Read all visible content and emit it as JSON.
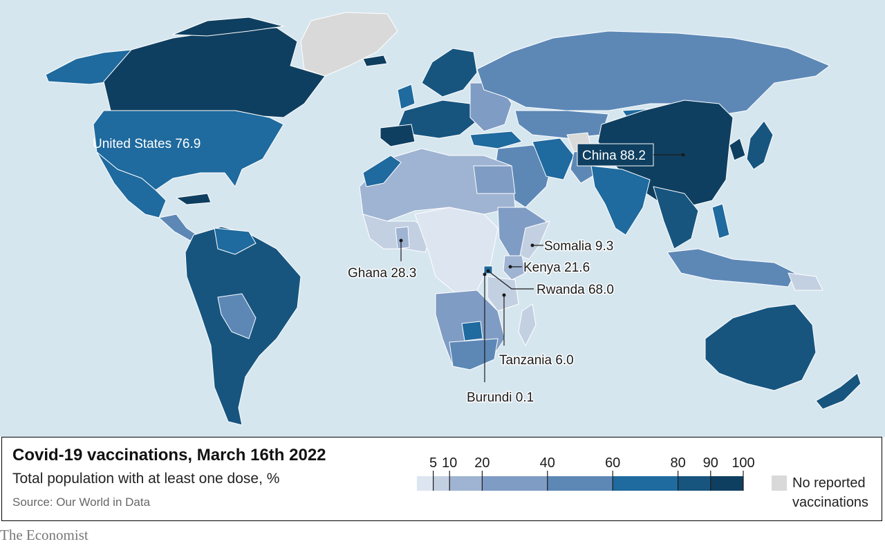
{
  "colors": {
    "ocean": "#d6e6ef",
    "no_data": "#d9d9d9",
    "accent_red": "#e3120b",
    "scale": [
      "#dde5f0",
      "#c3d0e2",
      "#9fb4d2",
      "#7f9cc4",
      "#5d88b6",
      "#1f6a9e",
      "#17557f",
      "#0f3f60"
    ]
  },
  "chart_data": {
    "type": "choropleth",
    "title": "Covid-19 vaccinations, March 16th 2022",
    "subtitle": "Total population with at least one dose, %",
    "source": "Source: Our World in Data",
    "legend": {
      "ticks": [
        "5",
        "10",
        "20",
        "40",
        "60",
        "80",
        "90",
        "100"
      ],
      "bins": [
        0,
        5,
        10,
        20,
        40,
        60,
        80,
        90,
        100
      ],
      "no_data_label": "No reported vaccinations"
    },
    "annotations": [
      {
        "country": "United States",
        "value": "76.9"
      },
      {
        "country": "China",
        "value": "88.2"
      },
      {
        "country": "Somalia",
        "value": "9.3"
      },
      {
        "country": "Kenya",
        "value": "21.6"
      },
      {
        "country": "Rwanda",
        "value": "68.0"
      },
      {
        "country": "Ghana",
        "value": "28.3"
      },
      {
        "country": "Tanzania",
        "value": "6.0"
      },
      {
        "country": "Burundi",
        "value": "0.1"
      }
    ]
  },
  "footer": {
    "brand": "The Economist"
  }
}
